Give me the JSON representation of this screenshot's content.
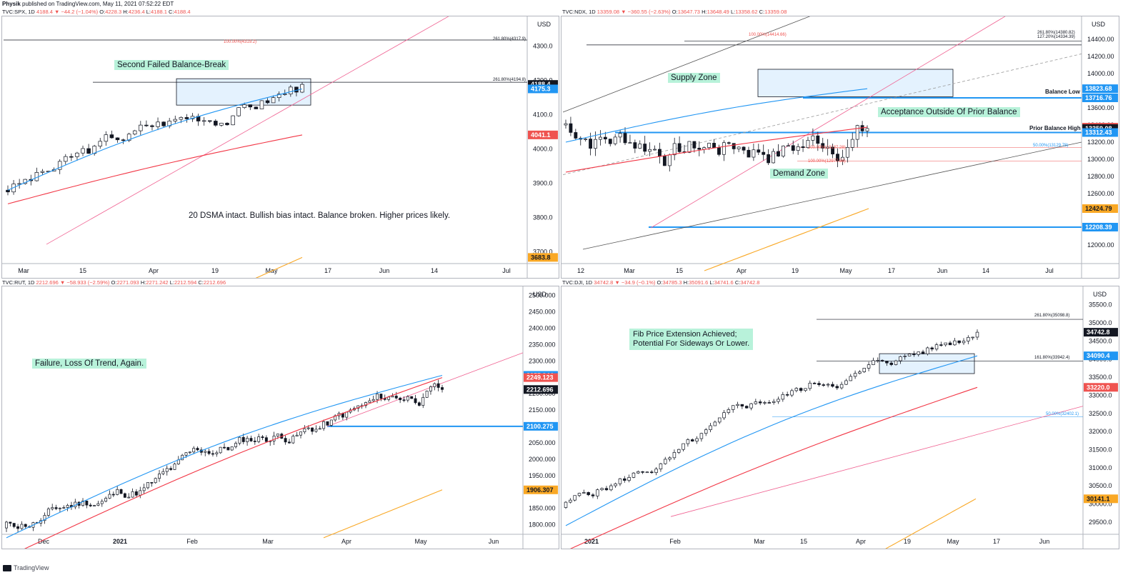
{
  "header": {
    "user": "Physik",
    "published": "published on TradingView.com, May 11, 2021 07:52:22 EDT"
  },
  "footer": {
    "brand": "TradingView"
  },
  "annotations": {
    "spx_label": "Second Failed Balance-Break",
    "spx_note": "20 DSMA intact. Bullish bias intact. Balance broken. Higher prices likely.",
    "spx_fib_high": "261.80%(4317.9)",
    "spx_fib_100": "100.00%(4319.2)",
    "spx_fib_mid": "261.80%(4194.8)",
    "ndx_supply": "Supply Zone",
    "ndx_demand": "Demand Zone",
    "ndx_acceptance": "Acceptance Outside Of Prior Balance",
    "ndx_balance_low": "Balance Low",
    "ndx_prior_balance_high": "Prior Balance High",
    "ndx_fib_a": "261.80%(14380.82)",
    "ndx_fib_b": "127.20%(14334.39)",
    "ndx_fib_c": "100.00%(14414.66)",
    "ndx_fib_d": "100.00%(13137.28)",
    "ndx_fib_e": "50.00%(13129.78)",
    "ndx_fib_f": "100.00%(12977.56)",
    "rut_label": "Failure, Loss Of Trend, Again.",
    "dji_label_1": "Fib Price Extension Achieved;",
    "dji_label_2": "Potential For Sideways Or Lower.",
    "dji_fib_a": "261.80%(35098.8)",
    "dji_fib_b": "161.80%(33942.4)",
    "dji_fib_c": "50.00%(32402.1)"
  },
  "chart_data": [
    {
      "type": "candlestick",
      "symbol": "TVC:SPX",
      "interval": "1D",
      "currency": "USD",
      "info": {
        "last": "4188.4",
        "change": "−44.2 (−1.04%)",
        "O": "4228.3",
        "H": "4236.4",
        "L": "4188.1",
        "C": "4188.4"
      },
      "ylim": [
        3670,
        4370
      ],
      "y_ticks": [
        3700.0,
        3800.0,
        3900.0,
        4000.0,
        4100.0,
        4200.0,
        4300.0
      ],
      "y_tick_labels": [
        "3700.0",
        "3800.0",
        "3900.0",
        "4000.0",
        "4100.0",
        "4200.0",
        "4300.0"
      ],
      "x_tick_labels": [
        "Mar",
        "15",
        "Apr",
        "19",
        "May",
        "17",
        "Jun",
        "14",
        "Jul"
      ],
      "price_tags": [
        {
          "value": 4188.4,
          "label": "4188.4",
          "color": "#131722"
        },
        {
          "value": 4175.3,
          "label": "4175.3",
          "color": "#2196f3"
        },
        {
          "value": 4041.1,
          "label": "4041.1",
          "color": "#ef5350"
        },
        {
          "value": 3683.8,
          "label": "3683.8",
          "color": "#f9a825"
        }
      ],
      "series": [
        {
          "name": "OHLC",
          "start": 3880,
          "end": 4188.4,
          "n": 52,
          "seed": 3,
          "vol": 18
        },
        {
          "name": "SMA 20",
          "color": "#2196f3"
        },
        {
          "name": "SMA 50",
          "color": "#f23645"
        },
        {
          "name": "SMA 200",
          "color": "#f9a825"
        }
      ]
    },
    {
      "type": "candlestick",
      "symbol": "TVC:NDX",
      "interval": "1D",
      "currency": "USD",
      "info": {
        "last": "13359.08",
        "change": "−360.55 (−2.63%)",
        "O": "13647.73",
        "H": "13648.49",
        "L": "13358.62",
        "C": "13359.08"
      },
      "ylim": [
        11800,
        14600
      ],
      "y_ticks": [
        12000.0,
        12200.0,
        12400.0,
        12600.0,
        12800.0,
        13000.0,
        13200.0,
        13400.0,
        13600.0,
        13800.0,
        14000.0,
        14200.0,
        14400.0
      ],
      "y_tick_labels": [
        "12000.00",
        "12200.00",
        "12400.00",
        "12600.00",
        "12800.00",
        "13000.00",
        "13200.00",
        "13400.00",
        "13600.00",
        "13800.00",
        "14000.00",
        "14200.00",
        "14400.00"
      ],
      "x_tick_labels": [
        "12",
        "Mar",
        "15",
        "Apr",
        "19",
        "May",
        "17",
        "Jun",
        "14",
        "Jul"
      ],
      "price_tags": [
        {
          "value": 13823.68,
          "label": "13823.68",
          "color": "#2196f3"
        },
        {
          "value": 13716.76,
          "label": "13716.76",
          "color": "#2196f3"
        },
        {
          "value": 13374.48,
          "label": "13374.48",
          "color": "#ef5350"
        },
        {
          "value": 13359.08,
          "label": "13359.08",
          "color": "#131722"
        },
        {
          "value": 13312.43,
          "label": "13312.43",
          "color": "#2196f3"
        },
        {
          "value": 12424.79,
          "label": "12424.79",
          "color": "#f9a825"
        },
        {
          "value": 12208.39,
          "label": "12208.39",
          "color": "#2196f3"
        }
      ],
      "series": [
        {
          "name": "OHLC",
          "start": 13400,
          "end": 13359.08,
          "n": 62,
          "seed": 7,
          "vol": 120
        },
        {
          "name": "SMA 20",
          "color": "#2196f3"
        },
        {
          "name": "SMA 50",
          "color": "#f23645"
        },
        {
          "name": "SMA 200",
          "color": "#f9a825"
        }
      ]
    },
    {
      "type": "candlestick",
      "symbol": "TVC:RUT",
      "interval": "1D",
      "currency": "USD",
      "info": {
        "last": "2212.696",
        "change": "−58.933 (−2.59%)",
        "O": "2271.093",
        "H": "2271.242",
        "L": "2212.594",
        "C": "2212.696"
      },
      "ylim": [
        1775,
        2510
      ],
      "y_ticks": [
        1800.0,
        1850.0,
        1900.0,
        1950.0,
        2000.0,
        2050.0,
        2100.0,
        2150.0,
        2200.0,
        2250.0,
        2300.0,
        2350.0,
        2400.0,
        2450.0,
        2500.0
      ],
      "y_tick_labels": [
        "1800.000",
        "1850.000",
        "1900.000",
        "1950.000",
        "2000.000",
        "2050.000",
        "2100.000",
        "2150.000",
        "2200.000",
        "2250.000",
        "2300.000",
        "2350.000",
        "2400.000",
        "2450.000",
        "2500.000"
      ],
      "x_tick_labels": [
        "Dec",
        "2021",
        "Feb",
        "Mar",
        "Apr",
        "May",
        "Jun"
      ],
      "price_tags": [
        {
          "value": 2255.944,
          "label": "2255.944",
          "color": "#2196f3"
        },
        {
          "value": 2249.123,
          "label": "2249.123",
          "color": "#ef5350"
        },
        {
          "value": 2212.696,
          "label": "2212.696",
          "color": "#131722"
        },
        {
          "value": 2100.275,
          "label": "2100.275",
          "color": "#2196f3"
        },
        {
          "value": 1906.307,
          "label": "1906.307",
          "color": "#f9a825"
        }
      ],
      "series": [
        {
          "name": "OHLC",
          "start": 1790,
          "end": 2212.696,
          "n": 115,
          "seed": 11,
          "vol": 16
        },
        {
          "name": "SMA 20",
          "color": "#2196f3"
        },
        {
          "name": "SMA 50",
          "color": "#f23645"
        },
        {
          "name": "SMA 200",
          "color": "#f9a825"
        }
      ]
    },
    {
      "type": "candlestick",
      "symbol": "TVC:DJI",
      "interval": "1D",
      "currency": "USD",
      "info": {
        "last": "34742.8",
        "change": "−34.9 (−0.1%)",
        "O": "34785.3",
        "H": "35091.6",
        "L": "34741.6",
        "C": "34742.8"
      },
      "ylim": [
        29200,
        35850
      ],
      "y_ticks": [
        29500.0,
        30000.0,
        30500.0,
        31000.0,
        31500.0,
        32000.0,
        32500.0,
        33000.0,
        33500.0,
        34000.0,
        34500.0,
        35000.0,
        35500.0
      ],
      "y_tick_labels": [
        "29500.0",
        "30000.0",
        "30500.0",
        "31000.0",
        "31500.0",
        "32000.0",
        "32500.0",
        "33000.0",
        "33500.0",
        "34000.0",
        "34500.0",
        "35000.0",
        "35500.0"
      ],
      "x_tick_labels": [
        "2021",
        "Feb",
        "Mar",
        "15",
        "Apr",
        "19",
        "May",
        "17",
        "Jun"
      ],
      "price_tags": [
        {
          "value": 34742.8,
          "label": "34742.8",
          "color": "#131722"
        },
        {
          "value": 34090.4,
          "label": "34090.4",
          "color": "#2196f3"
        },
        {
          "value": 33220.0,
          "label": "33220.0",
          "color": "#ef5350"
        },
        {
          "value": 30141.1,
          "label": "30141.1",
          "color": "#f9a825"
        }
      ],
      "series": [
        {
          "name": "OHLC",
          "start": 29900,
          "end": 34742.8,
          "n": 92,
          "seed": 5,
          "vol": 110
        },
        {
          "name": "SMA 20",
          "color": "#2196f3"
        },
        {
          "name": "SMA 50",
          "color": "#f23645"
        },
        {
          "name": "SMA 200",
          "color": "#f9a825"
        }
      ]
    }
  ]
}
